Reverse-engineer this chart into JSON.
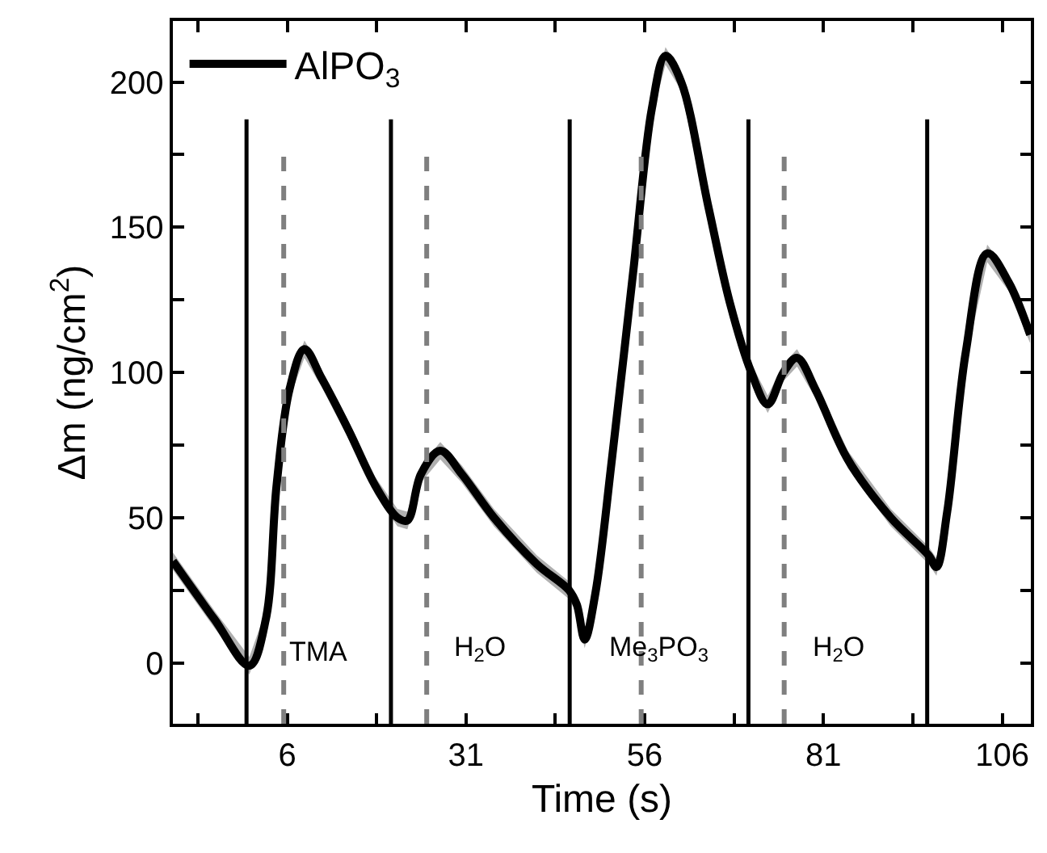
{
  "chart_data": {
    "type": "line",
    "xlabel": "Time (s)",
    "ylabel": "Δm (ng/cm$^{2}$)",
    "xlim": [
      -10,
      110
    ],
    "ylim": [
      -21,
      221
    ],
    "xticks": [
      {
        "value": -6.5,
        "label": null
      },
      6,
      {
        "value": 18.5,
        "label": null
      },
      31,
      {
        "value": 43.5,
        "label": null
      },
      56,
      {
        "value": 68.5,
        "label": null
      },
      81,
      {
        "value": 93.5,
        "label": null
      },
      106
    ],
    "yticks": [
      0,
      {
        "value": 25,
        "label": null
      },
      50,
      {
        "value": 75,
        "label": null
      },
      100,
      {
        "value": 125,
        "label": null
      },
      150,
      {
        "value": 175,
        "label": null
      },
      200
    ],
    "legend": "top left",
    "marker": "none",
    "line_style": "solid",
    "series": [
      {
        "name": "AlPO$_{3}$",
        "color": "#000000",
        "x": [
          -10,
          -4.2,
          0.7,
          3,
          4.5,
          6.3,
          8.4,
          10.8,
          14.6,
          18.3,
          21.4,
          22.8,
          24.7,
          27.4,
          30.4,
          34.9,
          40.9,
          45.4,
          46.5,
          47.6,
          49.1,
          51.4,
          54.4,
          57,
          58.9,
          61.1,
          64.9,
          67.9,
          70.9,
          73.2,
          75.4,
          77.3,
          79.9,
          84.4,
          90.4,
          95.7,
          96.8,
          98.3,
          100.9,
          103.9,
          106.9,
          109.9
        ],
        "values": [
          35,
          15,
          -1,
          15,
          61,
          94,
          108,
          98,
          80,
          61,
          50,
          49,
          65,
          73,
          65,
          50,
          34,
          25,
          20,
          8,
          24,
          70,
          135,
          191,
          209,
          200,
          157,
          124,
          100,
          89,
          100,
          105,
          94,
          70,
          50,
          37,
          33,
          52,
          107,
          141,
          131,
          113
        ],
        "lower": [
          32,
          12,
          -4,
          12,
          58,
          91,
          105,
          95,
          77,
          58,
          47,
          46,
          62,
          70,
          62,
          47,
          31,
          22,
          17,
          5,
          21,
          67,
          132,
          188,
          206,
          197,
          154,
          121,
          97,
          86,
          97,
          102,
          91,
          67,
          47,
          34,
          30,
          49,
          104,
          138,
          128,
          110
        ],
        "upper": [
          38,
          18,
          2,
          18,
          64,
          97,
          111,
          101,
          83,
          64,
          53,
          52,
          68,
          76,
          68,
          53,
          37,
          28,
          23,
          11,
          27,
          73,
          138,
          194,
          212,
          203,
          160,
          127,
          103,
          92,
          103,
          108,
          97,
          73,
          53,
          40,
          36,
          55,
          110,
          144,
          134,
          116
        ]
      }
    ],
    "ref_lines": [
      {
        "axis": "x",
        "value": 0.3,
        "color": "#000000",
        "line_style": "solid"
      },
      {
        "axis": "x",
        "value": 20.5,
        "color": "#000000",
        "line_style": "solid"
      },
      {
        "axis": "x",
        "value": 45.5,
        "color": "#000000",
        "line_style": "solid"
      },
      {
        "axis": "x",
        "value": 70.5,
        "color": "#000000",
        "line_style": "solid"
      },
      {
        "axis": "x",
        "value": 95.5,
        "color": "#000000",
        "line_style": "solid"
      },
      {
        "axis": "x",
        "value": 5.5,
        "color": "#7f7f7f",
        "line_style": "dashed"
      },
      {
        "axis": "x",
        "value": 25.5,
        "color": "#7f7f7f",
        "line_style": "dashed"
      },
      {
        "axis": "x",
        "value": 55.5,
        "color": "#7f7f7f",
        "line_style": "dashed"
      },
      {
        "axis": "x",
        "value": 75.5,
        "color": "#7f7f7f",
        "line_style": "dashed"
      }
    ],
    "annotations": [
      "TMA",
      "H$_{2}$O",
      "Me$_{3}$PO$_{3}$",
      "H$_{2}$O"
    ]
  }
}
